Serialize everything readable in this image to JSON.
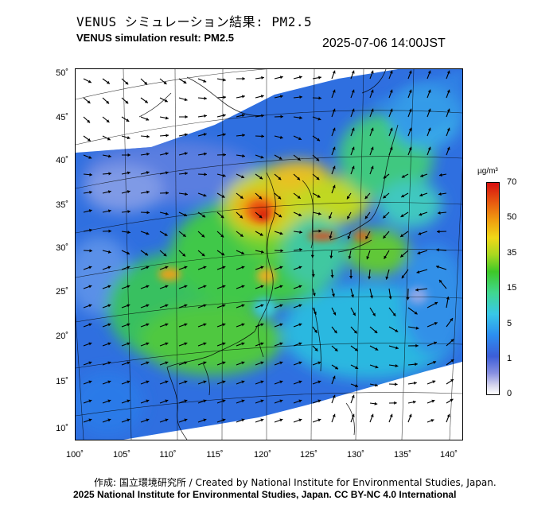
{
  "header": {
    "title_jp": "VENUS シミュレーション結果: PM2.5",
    "title_en": "VENUS simulation result: PM2.5",
    "timestamp": "2025-07-06 14:00JST"
  },
  "map": {
    "lat_labels": [
      "50˚",
      "45˚",
      "40˚",
      "35˚",
      "30˚",
      "25˚",
      "20˚",
      "15˚",
      "10˚"
    ],
    "lon_labels": [
      "100˚",
      "105˚",
      "110˚",
      "115˚",
      "120˚",
      "125˚",
      "130˚",
      "135˚",
      "140˚"
    ],
    "variable": "PM2.5"
  },
  "colorbar": {
    "unit": "µg/m³",
    "ticks": [
      "70",
      "50",
      "35",
      "15",
      "5",
      "1",
      "0"
    ],
    "colors": [
      "#d81010",
      "#f0a010",
      "#f0d818",
      "#3ec828",
      "#38c8e8",
      "#3c5ed8",
      "#ffffff"
    ]
  },
  "footer": {
    "credit_line": "作成: 国立環境研究所 / Created by National Institute for Environmental Studies, Japan.",
    "copyright_line": "2025 National Institute for Environmental Studies, Japan. CC BY-NC 4.0 International"
  }
}
